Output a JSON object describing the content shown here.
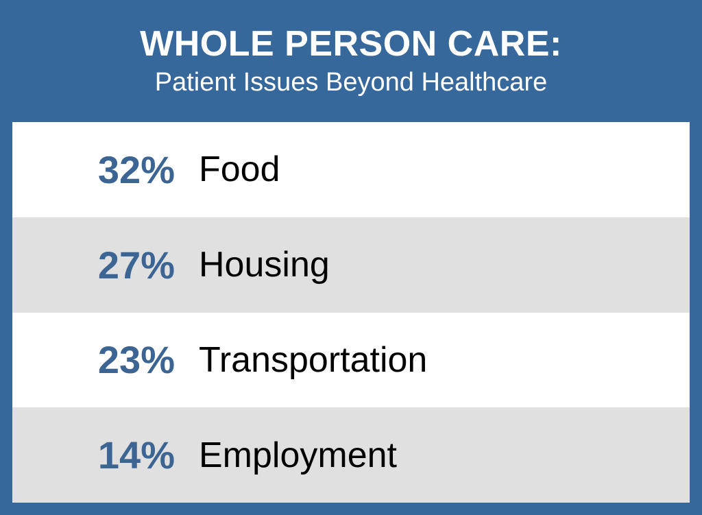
{
  "header": {
    "title": "WHOLE PERSON CARE:",
    "subtitle": "Patient Issues Beyond Healthcare"
  },
  "rows": [
    {
      "value": "32%",
      "label": "Food"
    },
    {
      "value": "27%",
      "label": "Housing"
    },
    {
      "value": "23%",
      "label": "Transportation"
    },
    {
      "value": "14%",
      "label": "Employment"
    }
  ]
}
